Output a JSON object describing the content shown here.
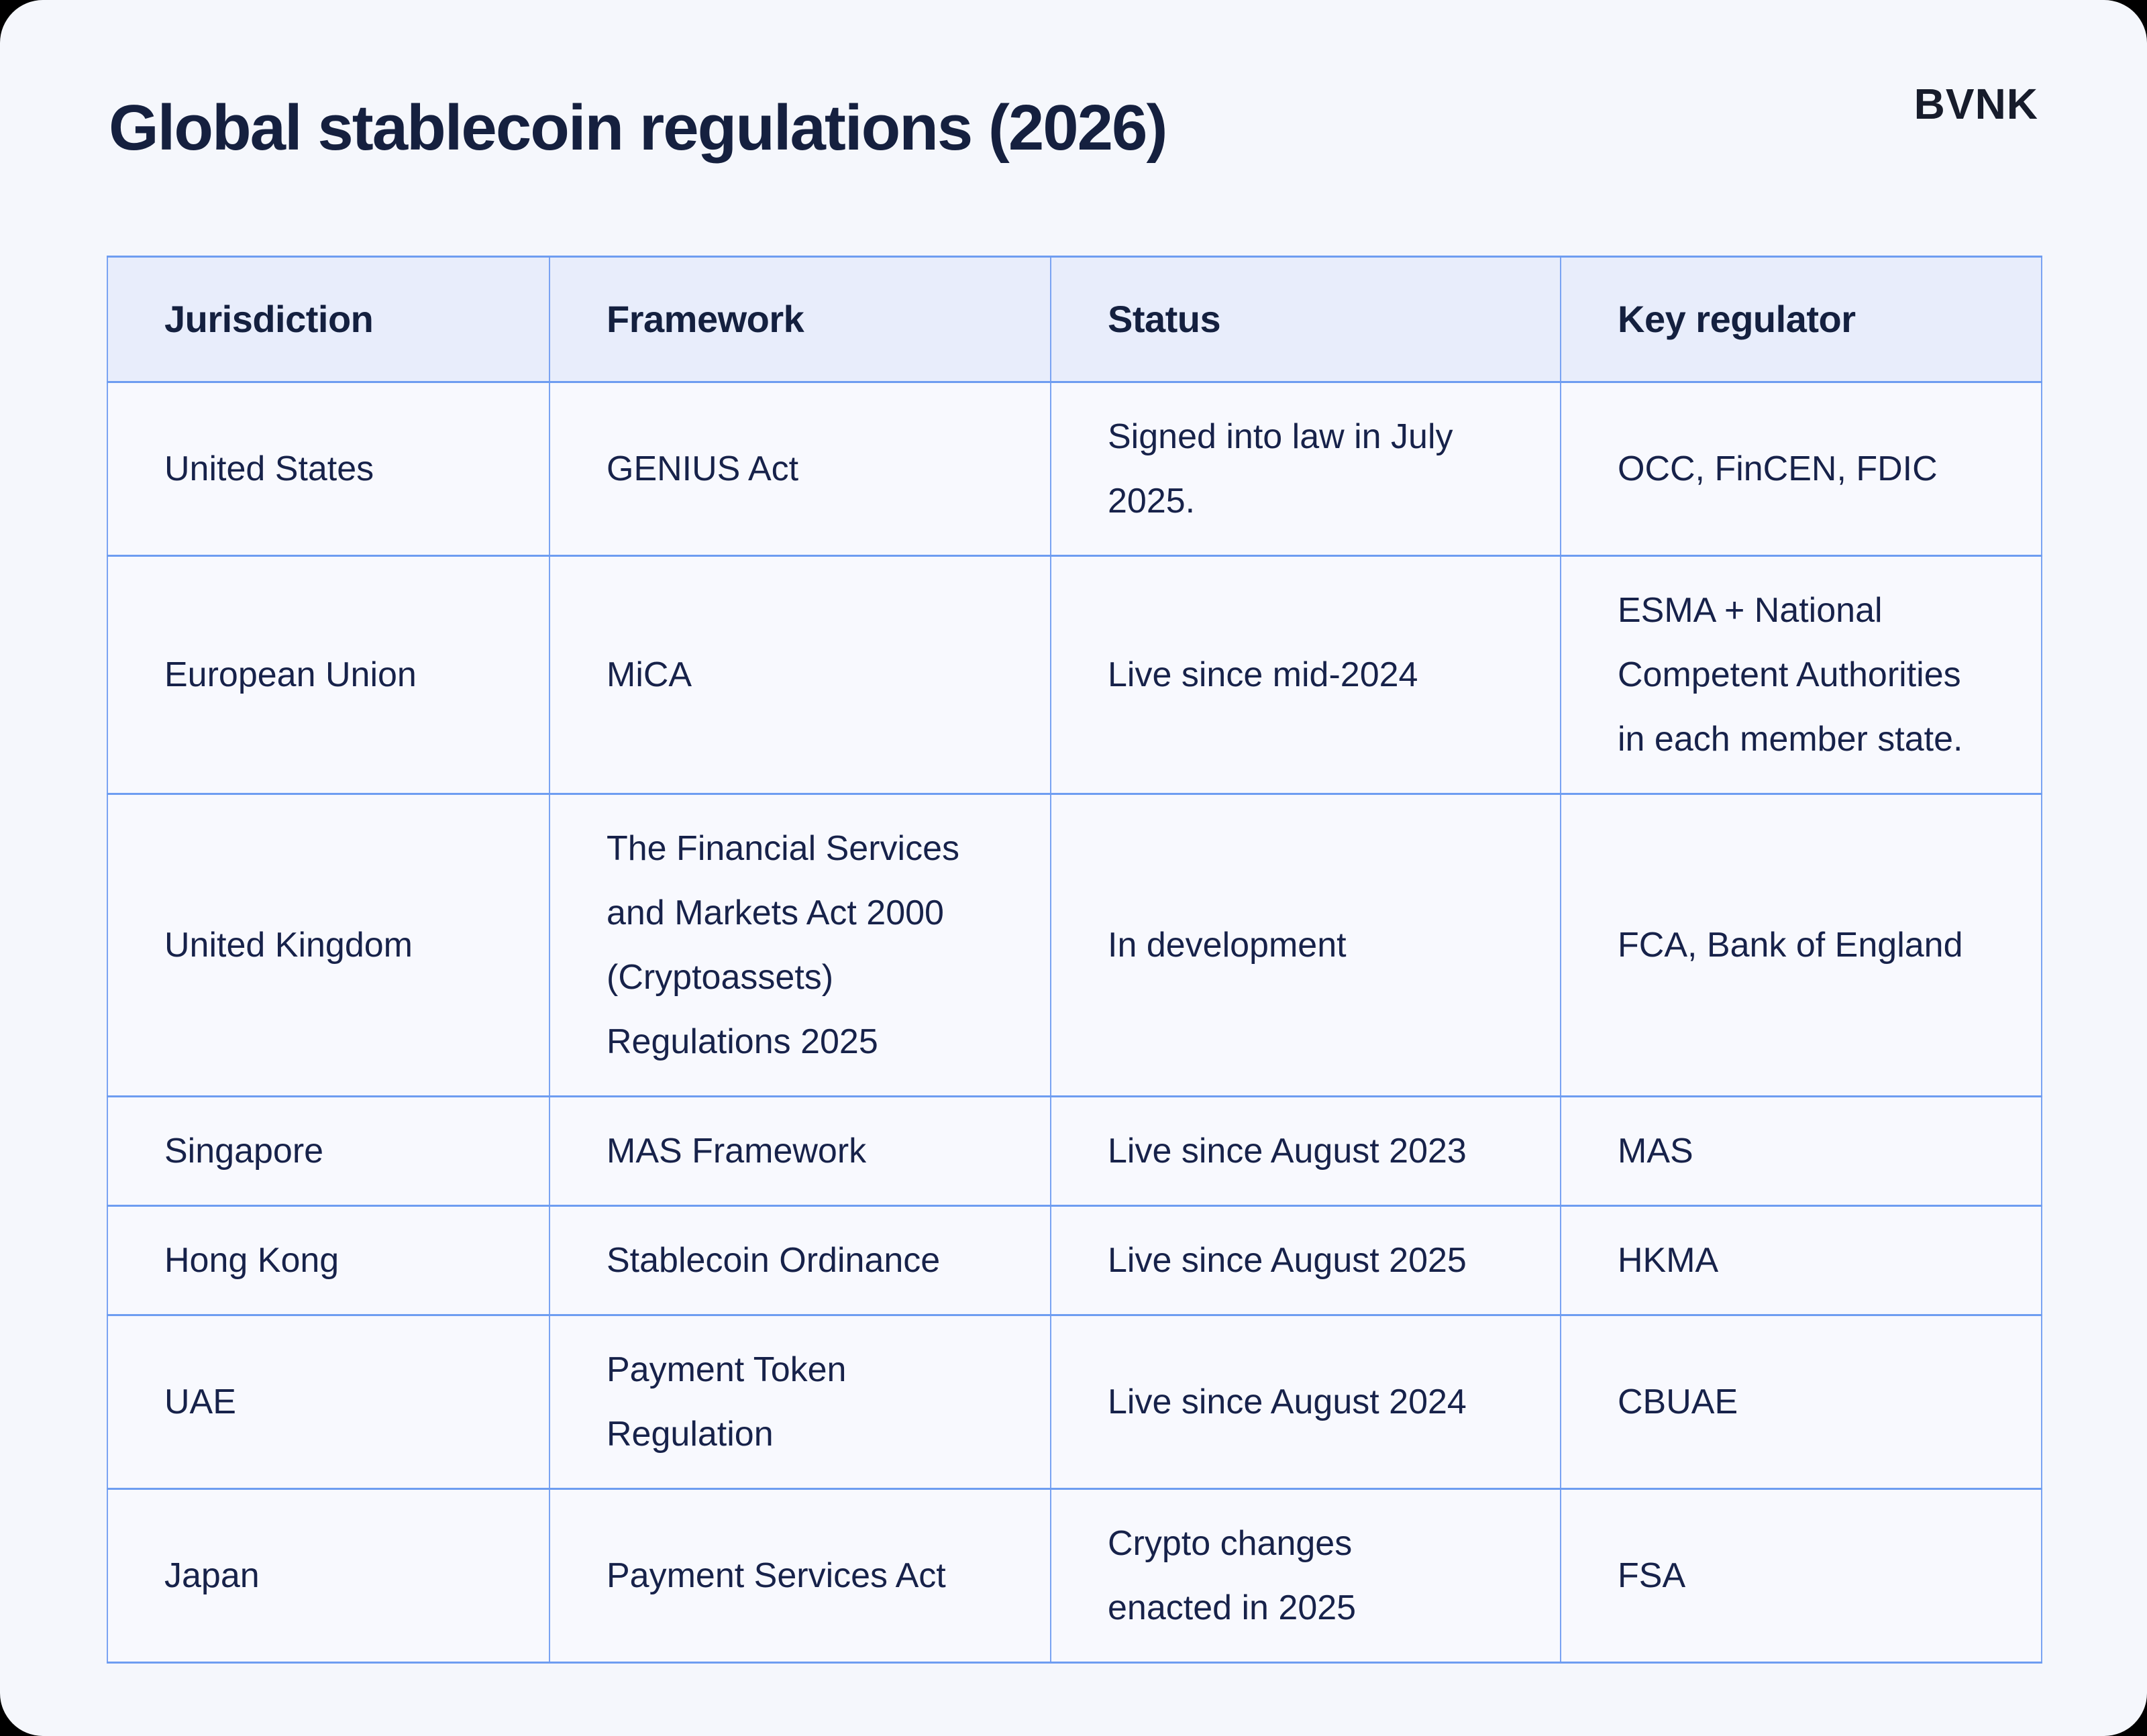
{
  "header": {
    "title": "Global stablecoin regulations (2026)",
    "brand": "BVNK"
  },
  "chart_data": {
    "type": "table",
    "title": "Global stablecoin regulations (2026)",
    "columns": [
      "Jurisdiction",
      "Framework",
      "Status",
      "Key regulator"
    ],
    "rows": [
      [
        "United States",
        "GENIUS Act",
        "Signed into law in July\n2025.",
        "OCC, FinCEN, FDIC"
      ],
      [
        "European Union",
        "MiCA",
        "Live since mid-2024",
        "ESMA + National\nCompetent Authorities\nin each member state."
      ],
      [
        "United Kingdom",
        "The Financial Services\nand Markets Act 2000\n(Cryptoassets)\nRegulations 2025",
        "In development",
        "FCA, Bank of England"
      ],
      [
        "Singapore",
        "MAS Framework",
        "Live since August 2023",
        "MAS"
      ],
      [
        "Hong Kong",
        "Stablecoin Ordinance",
        "Live since August 2025",
        "HKMA"
      ],
      [
        "UAE",
        "Payment Token\nRegulation",
        "Live since August 2024",
        "CBUAE"
      ],
      [
        "Japan",
        "Payment Services Act",
        "Crypto changes\nenacted in 2025",
        "FSA"
      ]
    ],
    "layout": {
      "grid": true,
      "header_row_shaded": true
    }
  },
  "colors": {
    "outer_background": "#000000",
    "page_background": "#f5f7fc",
    "header_fill": "#e8edfb",
    "cell_fill": "#f8f9fe",
    "border_blue": "#6e9df1",
    "text_navy": "#15203f",
    "brand_ink": "#171c2b"
  }
}
